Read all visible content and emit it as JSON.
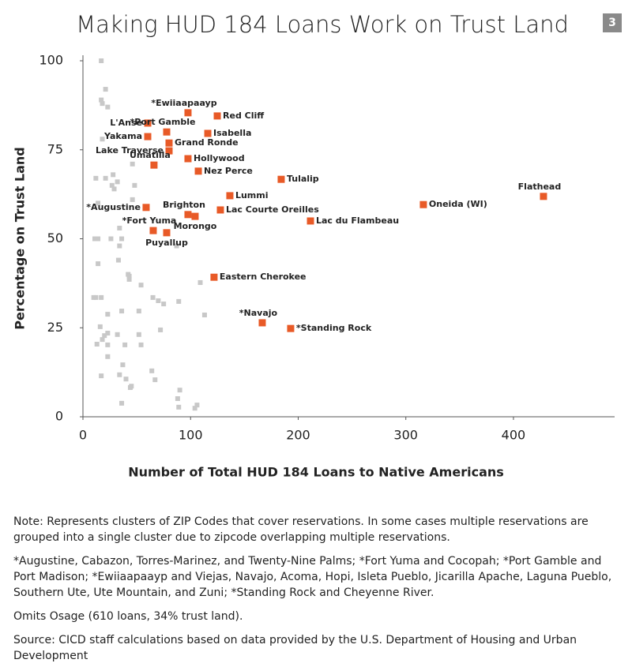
{
  "page_number": 3,
  "chart_data": {
    "type": "scatter",
    "title": "Making HUD 184 Loans Work on Trust Land",
    "x_label": "Number of Total HUD 184 Loans to Native Americans",
    "y_label": "Percentage on Trust Land",
    "xlim": [
      0,
      494
    ],
    "ylim": [
      0,
      100
    ],
    "xticks": [
      0,
      100,
      200,
      300,
      400
    ],
    "yticks": [
      0,
      25,
      50,
      75,
      100
    ],
    "series": [
      {
        "color": "#e85a27",
        "labels": [
          "*Ewiiaapaayp",
          "Red Cliff",
          "L'Anse",
          "*Port Gamble",
          "Isabella",
          "Yakama",
          "Grand Ronde",
          "Lake Traverse",
          "Hollywood",
          "Umatilla",
          "Nez Perce",
          "Tulalip",
          "Lummi",
          "Flathead",
          "Oneida (WI)",
          "*Augustine",
          "Brighton",
          "Morongo",
          "Lac Courte Oreilles",
          "Lac du Flambeau",
          "*Fort Yuma",
          "Puyallup",
          "Eastern Cherokee",
          "*Navajo",
          "*Standing Rock"
        ],
        "x": [
          97.6,
          124.8,
          60.2,
          77.8,
          116,
          60.2,
          80,
          80,
          97.6,
          66,
          107.2,
          184.2,
          136.5,
          427.9,
          316.3,
          58.7,
          97.6,
          104.2,
          127.7,
          211.4,
          65.3,
          77.8,
          121.8,
          166.6,
          193
        ],
        "values": [
          85.4,
          84.5,
          82.5,
          80,
          79.6,
          78.7,
          76.9,
          74.7,
          72.5,
          70.7,
          69,
          66.7,
          62.1,
          61.9,
          59.6,
          58.8,
          56.8,
          56.3,
          58.1,
          55,
          52.3,
          51.7,
          39.2,
          26.4,
          24.8
        ]
      },
      {
        "color": "#c8c8c8",
        "x": [
          17,
          21,
          17,
          18,
          23,
          18,
          46,
          12,
          21,
          28,
          32,
          29,
          27,
          48,
          46,
          14,
          11,
          14,
          26,
          36,
          34,
          34,
          14,
          33,
          42,
          43,
          43,
          54,
          87,
          10,
          12,
          17,
          65,
          70,
          75,
          89,
          109,
          113,
          23,
          36,
          52,
          16,
          20,
          23,
          32,
          13,
          23,
          39,
          54,
          64,
          67,
          37,
          34,
          40,
          45,
          44,
          23,
          17,
          90,
          88,
          36,
          89,
          106,
          104,
          72,
          52,
          18
        ],
        "values": [
          100,
          92,
          89,
          88,
          87,
          78,
          71,
          67,
          67,
          68,
          66,
          64,
          65,
          65,
          61,
          60,
          50,
          50,
          50,
          50,
          53,
          48,
          43,
          44,
          40,
          39.5,
          38.6,
          37,
          48,
          33.5,
          33.5,
          33.5,
          33.5,
          32.6,
          31.7,
          32.4,
          37.7,
          28.6,
          28.8,
          29.7,
          29.7,
          25.3,
          22.8,
          23.5,
          23.1,
          20.4,
          20.2,
          20.2,
          20.2,
          12.9,
          10.4,
          14.6,
          11.8,
          10.6,
          8.6,
          8.2,
          16.9,
          11.5,
          7.5,
          5.1,
          3.8,
          2.7,
          3.3,
          2.4,
          24.4,
          23.1,
          21.7
        ]
      }
    ]
  },
  "notes": [
    "Note: Represents clusters of ZIP Codes that cover reservations. In some cases multiple reservations are grouped into a single cluster due to zipcode overlapping multiple reservations.",
    "*Augustine, Cabazon, Torres-Marinez, and Twenty-Nine Palms; *Fort Yuma and Cocopah; *Port Gamble and Port Madison; *Ewiiaapaayp and Viejas, Navajo, Acoma, Hopi, Isleta Pueblo, Jicarilla Apache, Laguna Pueblo, Southern Ute, Ute Mountain, and Zuni; *Standing Rock and Cheyenne River.",
    "Omits Osage (610 loans, 34% trust land).",
    "Source: CICD staff calculations based on data provided by the U.S. Department of Housing and Urban Development"
  ]
}
